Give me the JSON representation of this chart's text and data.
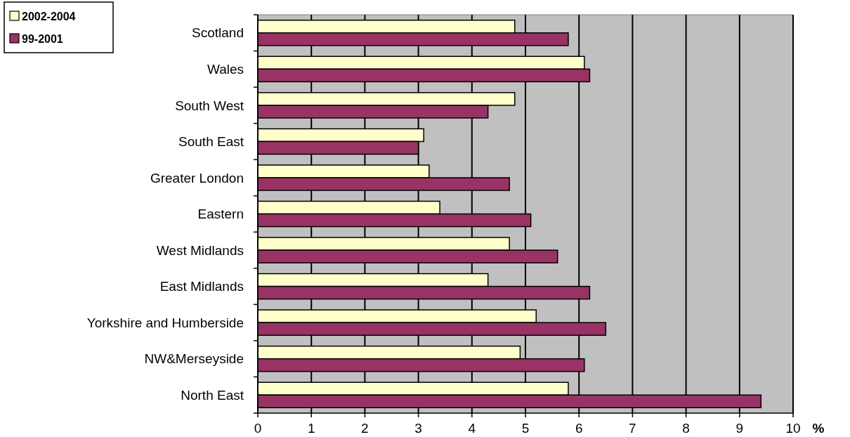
{
  "chart_data": {
    "type": "bar",
    "orientation": "horizontal",
    "xlabel": "%",
    "categories": [
      "Scotland",
      "Wales",
      "South West",
      "South East",
      "Greater London",
      "Eastern",
      "West Midlands",
      "East Midlands",
      "Yorkshire and Humberside",
      "NW&Merseyside",
      "North East"
    ],
    "series": [
      {
        "name": "2002-2004",
        "color": "#ffffcc",
        "values": [
          4.8,
          6.1,
          4.8,
          3.1,
          3.2,
          3.4,
          4.7,
          4.3,
          5.2,
          4.9,
          5.8
        ]
      },
      {
        "name": "99-2001",
        "color": "#993366",
        "values": [
          5.8,
          6.2,
          4.3,
          3.0,
          4.7,
          5.1,
          5.6,
          6.2,
          6.5,
          6.1,
          9.4
        ]
      }
    ],
    "xlim": [
      0,
      10
    ],
    "xticks": [
      0,
      1,
      2,
      3,
      4,
      5,
      6,
      7,
      8,
      9,
      10
    ],
    "grid": "x",
    "legend": "top left"
  }
}
